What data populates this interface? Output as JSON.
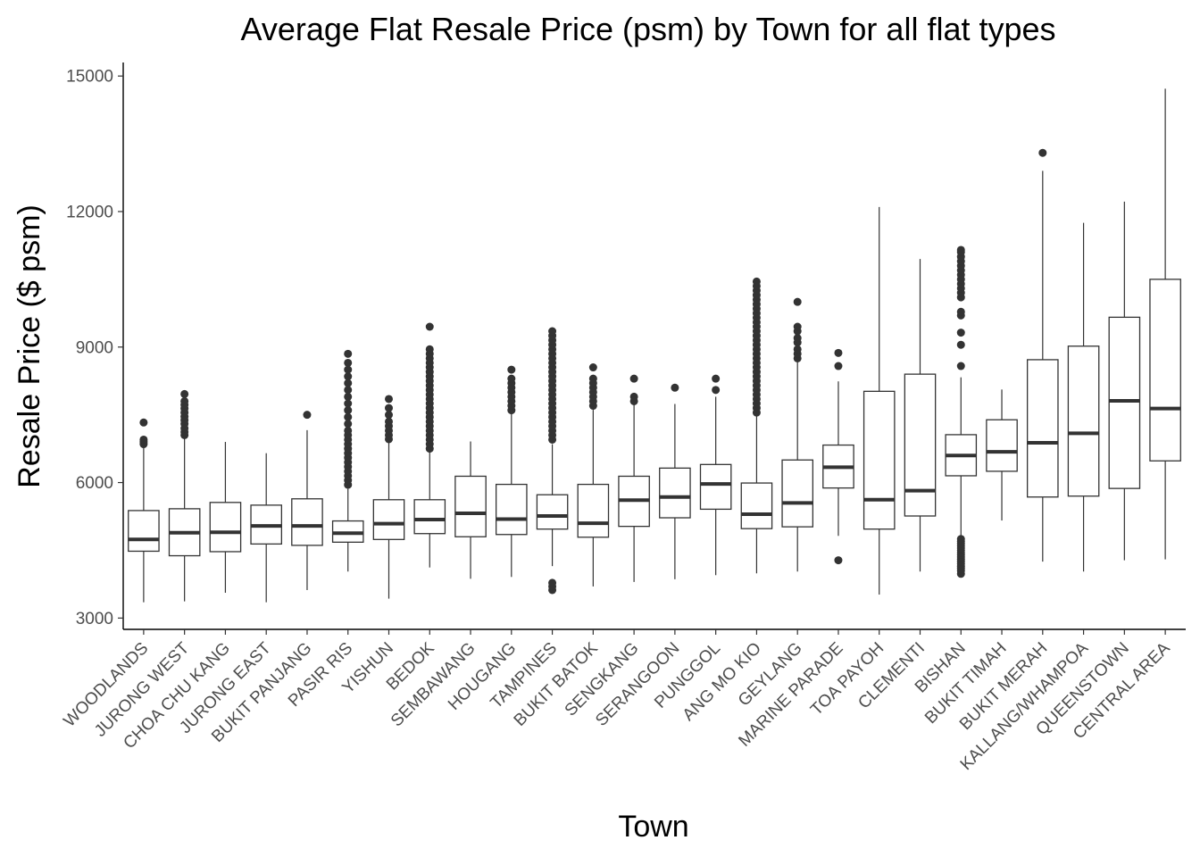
{
  "chart_data": {
    "type": "boxplot",
    "title": "Average Flat Resale Price (psm) by Town for all flat types",
    "xlabel": "Town",
    "ylabel": "Resale Price ($ psm)",
    "ylim": [
      2750,
      15300
    ],
    "yticks": [
      3000,
      6000,
      9000,
      12000,
      15000
    ],
    "grid": false,
    "legend": "none",
    "box_color": "#333333",
    "outlier_color": "#333333",
    "categories": [
      "WOODLANDS",
      "JURONG WEST",
      "CHOA CHU KANG",
      "JURONG EAST",
      "BUKIT PANJANG",
      "PASIR RIS",
      "YISHUN",
      "BEDOK",
      "SEMBAWANG",
      "HOUGANG",
      "TAMPINES",
      "BUKIT BATOK",
      "SENGKANG",
      "SERANGOON",
      "PUNGGOL",
      "ANG MO KIO",
      "GEYLANG",
      "MARINE PARADE",
      "TOA PAYOH",
      "CLEMENTI",
      "BISHAN",
      "BUKIT TIMAH",
      "BUKIT MERAH",
      "KALLANG/WHAMPOA",
      "QUEENSTOWN",
      "CENTRAL AREA"
    ],
    "boxes": [
      {
        "min": 3350,
        "q1": 4480,
        "median": 4740,
        "q3": 5380,
        "max": 6780,
        "outliers": [
          6850,
          6900,
          6950,
          7330
        ]
      },
      {
        "min": 3370,
        "q1": 4380,
        "median": 4890,
        "q3": 5420,
        "max": 6980,
        "outliers": [
          7050,
          7120,
          7200,
          7300,
          7380,
          7460,
          7550,
          7640,
          7720,
          7800,
          7960
        ]
      },
      {
        "min": 3560,
        "q1": 4470,
        "median": 4900,
        "q3": 5560,
        "max": 6900,
        "outliers": []
      },
      {
        "min": 3350,
        "q1": 4640,
        "median": 5040,
        "q3": 5500,
        "max": 6650,
        "outliers": []
      },
      {
        "min": 3620,
        "q1": 4610,
        "median": 5040,
        "q3": 5640,
        "max": 7160,
        "outliers": [
          7500
        ]
      },
      {
        "min": 4030,
        "q1": 4680,
        "median": 4880,
        "q3": 5150,
        "max": 5860,
        "outliers": [
          5950,
          6050,
          6150,
          6250,
          6350,
          6450,
          6550,
          6650,
          6750,
          6850,
          6950,
          7050,
          7150,
          7300,
          7450,
          7600,
          7750,
          7900,
          8050,
          8200,
          8350,
          8500,
          8650,
          8850
        ]
      },
      {
        "min": 3430,
        "q1": 4740,
        "median": 5090,
        "q3": 5620,
        "max": 6880,
        "outliers": [
          6960,
          7050,
          7150,
          7250,
          7350,
          7500,
          7650,
          7850
        ]
      },
      {
        "min": 4120,
        "q1": 4870,
        "median": 5180,
        "q3": 5620,
        "max": 6700,
        "outliers": [
          6750,
          6850,
          6950,
          7050,
          7150,
          7250,
          7350,
          7450,
          7550,
          7650,
          7750,
          7850,
          7950,
          8050,
          8150,
          8250,
          8350,
          8450,
          8550,
          8650,
          8750,
          8850,
          8950,
          9450
        ]
      },
      {
        "min": 3870,
        "q1": 4800,
        "median": 5320,
        "q3": 6140,
        "max": 6910,
        "outliers": []
      },
      {
        "min": 3910,
        "q1": 4850,
        "median": 5190,
        "q3": 5960,
        "max": 7540,
        "outliers": [
          7600,
          7700,
          7800,
          7900,
          8000,
          8100,
          8200,
          8300,
          8500
        ]
      },
      {
        "min": 4150,
        "q1": 4970,
        "median": 5260,
        "q3": 5730,
        "max": 6850,
        "outliers": [
          3620,
          3700,
          3780,
          6950,
          7050,
          7150,
          7250,
          7350,
          7450,
          7550,
          7650,
          7750,
          7850,
          7950,
          8050,
          8150,
          8250,
          8350,
          8450,
          8550,
          8650,
          8750,
          8850,
          8950,
          9050,
          9150,
          9250,
          9350
        ]
      },
      {
        "min": 3700,
        "q1": 4790,
        "median": 5100,
        "q3": 5960,
        "max": 7610,
        "outliers": [
          7700,
          7800,
          7900,
          8000,
          8100,
          8200,
          8300,
          8550
        ]
      },
      {
        "min": 3800,
        "q1": 5030,
        "median": 5610,
        "q3": 6140,
        "max": 7730,
        "outliers": [
          7800,
          7900,
          8300
        ]
      },
      {
        "min": 3860,
        "q1": 5220,
        "median": 5680,
        "q3": 6320,
        "max": 7740,
        "outliers": [
          8100
        ]
      },
      {
        "min": 3950,
        "q1": 5410,
        "median": 5970,
        "q3": 6400,
        "max": 7900,
        "outliers": [
          8050,
          8300
        ]
      },
      {
        "min": 3990,
        "q1": 4980,
        "median": 5300,
        "q3": 5990,
        "max": 7500,
        "outliers": [
          7550,
          7650,
          7750,
          7850,
          7950,
          8050,
          8150,
          8250,
          8350,
          8450,
          8550,
          8650,
          8750,
          8850,
          8950,
          9050,
          9150,
          9250,
          9350,
          9450,
          9550,
          9650,
          9750,
          9850,
          9950,
          10050,
          10150,
          10250,
          10350,
          10450
        ]
      },
      {
        "min": 4030,
        "q1": 5020,
        "median": 5550,
        "q3": 6500,
        "max": 8700,
        "outliers": [
          8750,
          8850,
          8950,
          9100,
          9200,
          9350,
          9450,
          10000
        ]
      },
      {
        "min": 4820,
        "q1": 5880,
        "median": 6340,
        "q3": 6830,
        "max": 8240,
        "outliers": [
          4280,
          8580,
          8870
        ]
      },
      {
        "min": 3520,
        "q1": 4970,
        "median": 5620,
        "q3": 8020,
        "max": 12100,
        "outliers": []
      },
      {
        "min": 4030,
        "q1": 5260,
        "median": 5820,
        "q3": 8400,
        "max": 10950,
        "outliers": []
      },
      {
        "min": 4800,
        "q1": 6150,
        "median": 6600,
        "q3": 7060,
        "max": 8330,
        "outliers": [
          3980,
          4050,
          4100,
          4150,
          4200,
          4250,
          4300,
          4350,
          4400,
          4450,
          4500,
          4550,
          4600,
          4650,
          4700,
          4750,
          8580,
          9050,
          9320,
          9700,
          9780,
          10100,
          10200,
          10300,
          10400,
          10500,
          10600,
          10700,
          10800,
          10900,
          11000,
          11100,
          11150
        ]
      },
      {
        "min": 5160,
        "q1": 6250,
        "median": 6680,
        "q3": 7390,
        "max": 8060,
        "outliers": []
      },
      {
        "min": 4250,
        "q1": 5680,
        "median": 6880,
        "q3": 8720,
        "max": 12900,
        "outliers": [
          13300
        ]
      },
      {
        "min": 4030,
        "q1": 5700,
        "median": 7090,
        "q3": 9020,
        "max": 11750,
        "outliers": []
      },
      {
        "min": 4280,
        "q1": 5870,
        "median": 7810,
        "q3": 9660,
        "max": 12220,
        "outliers": []
      },
      {
        "min": 4300,
        "q1": 6480,
        "median": 7640,
        "q3": 10500,
        "max": 14720,
        "outliers": []
      }
    ]
  }
}
